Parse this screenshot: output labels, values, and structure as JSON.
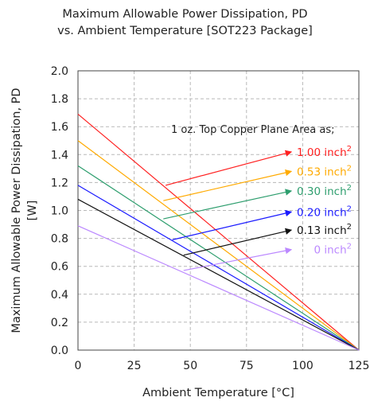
{
  "chart_data": {
    "type": "line",
    "title_line1": "Maximum Allowable Power Dissipation, PD",
    "title_line2": "vs. Ambient Temperature [SOT223 Package]",
    "xlabel": "Ambient Temperature [°C]",
    "ylabel_line1": "Maximum Allowable Power Dissipation, PD",
    "ylabel_line2": "[W]",
    "xlim": [
      0,
      125
    ],
    "ylim": [
      0,
      2.0
    ],
    "x_ticks": [
      "0",
      "25",
      "50",
      "75",
      "100",
      "125"
    ],
    "y_ticks": [
      "0.0",
      "0.2",
      "0.4",
      "0.6",
      "0.8",
      "1.0",
      "1.2",
      "1.4",
      "1.6",
      "1.8",
      "2.0"
    ],
    "grid": true,
    "annotation_header": "1 oz. Top Copper Plane Area as;",
    "series": [
      {
        "name": "1.00 inch",
        "sup": "2",
        "color": "#ff2020",
        "x": [
          0,
          125
        ],
        "y": [
          1.69,
          0.0
        ],
        "arrow_from": [
          39,
          1.18
        ],
        "arrow_to": [
          95,
          1.42
        ]
      },
      {
        "name": "0.53 inch",
        "sup": "2",
        "color": "#ffaa00",
        "x": [
          0,
          125
        ],
        "y": [
          1.5,
          0.0
        ],
        "arrow_from": [
          38,
          1.07
        ],
        "arrow_to": [
          95,
          1.28
        ]
      },
      {
        "name": "0.30 inch",
        "sup": "2",
        "color": "#2e9e6e",
        "x": [
          0,
          125
        ],
        "y": [
          1.32,
          0.0
        ],
        "arrow_from": [
          38,
          0.94
        ],
        "arrow_to": [
          95,
          1.14
        ]
      },
      {
        "name": "0.20 inch",
        "sup": "2",
        "color": "#1a1aff",
        "x": [
          0,
          125
        ],
        "y": [
          1.18,
          0.0
        ],
        "arrow_from": [
          42,
          0.79
        ],
        "arrow_to": [
          95,
          0.99
        ]
      },
      {
        "name": "0.13 inch",
        "sup": "2",
        "color": "#111111",
        "x": [
          0,
          125
        ],
        "y": [
          1.08,
          0.0
        ],
        "arrow_from": [
          47,
          0.68
        ],
        "arrow_to": [
          95,
          0.86
        ]
      },
      {
        "name": "0 inch",
        "sup": "2",
        "color": "#bb88ff",
        "x": [
          0,
          125
        ],
        "y": [
          0.89,
          0.0
        ],
        "arrow_from": [
          47,
          0.57
        ],
        "arrow_to": [
          95,
          0.72
        ]
      }
    ]
  }
}
